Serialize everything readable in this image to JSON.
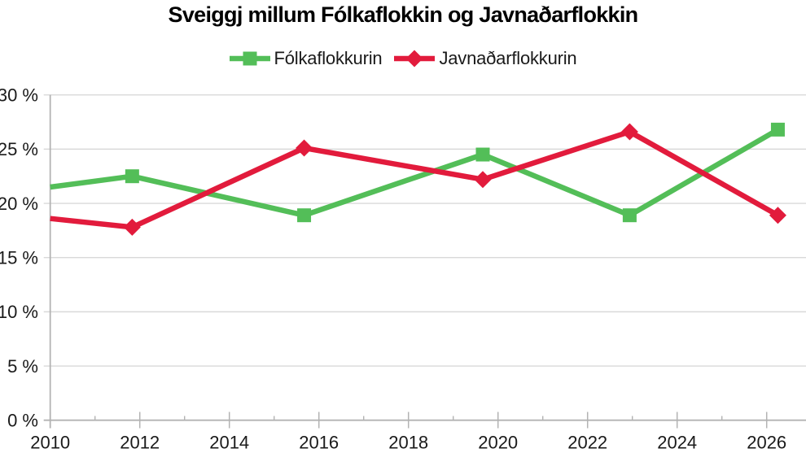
{
  "chart_data": {
    "type": "line",
    "title": "Sveiggj millum Fólkaflokkin og Javnaðarflokkin",
    "x_major_ticks": [
      2010,
      2012,
      2014,
      2016,
      2018,
      2020,
      2022,
      2024,
      2026
    ],
    "x_minor_ticks": [
      2011,
      2013,
      2015,
      2017,
      2019,
      2021,
      2023,
      2025
    ],
    "x_range": [
      2010,
      2026.88
    ],
    "y_ticks": [
      0,
      5,
      10,
      15,
      20,
      25,
      30
    ],
    "y_tick_suffix": " %",
    "y_range": [
      0,
      30
    ],
    "grid": "horizontal",
    "legend_position": "top-center",
    "colors": {
      "grid": "#d9d9d9",
      "axis": "#b3b3b3",
      "tick_text": "#1a1a1a",
      "background": "#ffffff"
    },
    "series": [
      {
        "name": "Fólkaflokkurin",
        "color": "#53be58",
        "marker": "square",
        "points": [
          {
            "x": 2010.0,
            "y": 21.5,
            "marker": false
          },
          {
            "x": 2011.83,
            "y": 22.5
          },
          {
            "x": 2015.67,
            "y": 18.9
          },
          {
            "x": 2019.66,
            "y": 24.5
          },
          {
            "x": 2022.94,
            "y": 18.9
          },
          {
            "x": 2026.25,
            "y": 26.8
          }
        ]
      },
      {
        "name": "Javnaðarflokkurin",
        "color": "#e21b3c",
        "marker": "diamond",
        "points": [
          {
            "x": 2010.0,
            "y": 18.6,
            "marker": false
          },
          {
            "x": 2011.83,
            "y": 17.8
          },
          {
            "x": 2015.67,
            "y": 25.1
          },
          {
            "x": 2019.66,
            "y": 22.2
          },
          {
            "x": 2022.94,
            "y": 26.6
          },
          {
            "x": 2026.25,
            "y": 18.9
          }
        ]
      }
    ]
  }
}
